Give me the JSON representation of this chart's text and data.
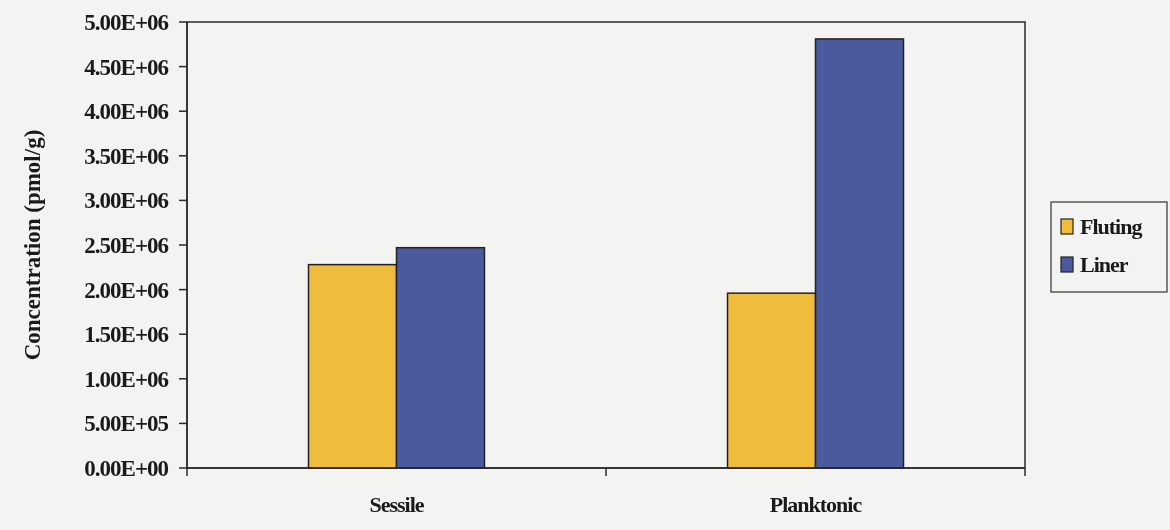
{
  "chart_data": {
    "type": "bar",
    "ylabel": "Concentration (pmol/g)",
    "categories": [
      "Sessile",
      "Planktonic"
    ],
    "series": [
      {
        "name": "Fluting",
        "color": "#f0bc3c",
        "values": [
          2280000,
          1960000
        ]
      },
      {
        "name": "Liner",
        "color": "#4a5a9c",
        "values": [
          2470000,
          4810000
        ]
      }
    ],
    "ylim": [
      0,
      5000000
    ],
    "yticks": [
      {
        "value": 0,
        "label": "0.00E+00"
      },
      {
        "value": 500000,
        "label": "5.00E+05"
      },
      {
        "value": 1000000,
        "label": "1.00E+06"
      },
      {
        "value": 1500000,
        "label": "1.50E+06"
      },
      {
        "value": 2000000,
        "label": "2.00E+06"
      },
      {
        "value": 2500000,
        "label": "2.50E+06"
      },
      {
        "value": 3000000,
        "label": "3.00E+06"
      },
      {
        "value": 3500000,
        "label": "3.50E+06"
      },
      {
        "value": 4000000,
        "label": "4.00E+06"
      },
      {
        "value": 4500000,
        "label": "4.50E+06"
      },
      {
        "value": 5000000,
        "label": "5.00E+06"
      }
    ],
    "legend": "right"
  }
}
